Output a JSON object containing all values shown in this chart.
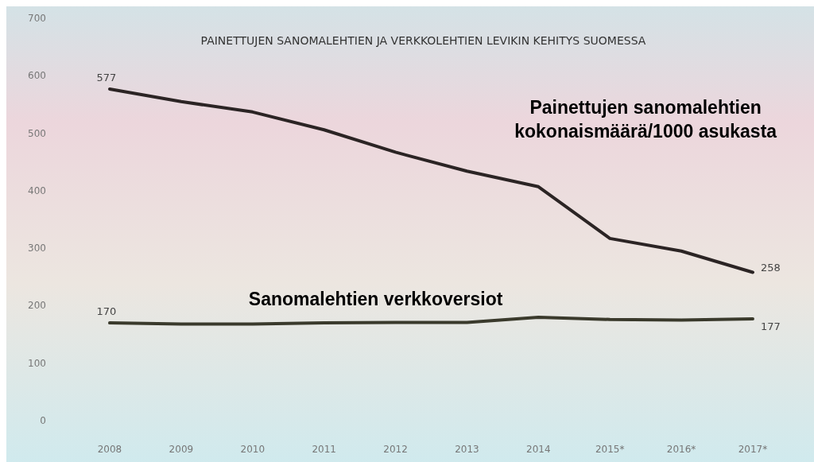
{
  "chart_data": {
    "type": "line",
    "title": "PAINETTUJEN SANOMALEHTIEN JA VERKKOLEHTIEN LEVIKIN KEHITYS SUOMESSA",
    "categories": [
      "2008",
      "2009",
      "2010",
      "2011",
      "2012",
      "2013",
      "2014",
      "2015*",
      "2016*",
      "2017*"
    ],
    "series": [
      {
        "name": "Painettujen sanomalehtien kokonaismäärä/1000 asukasta",
        "color": "#2b2424",
        "values": [
          577,
          555,
          537,
          506,
          467,
          434,
          407,
          317,
          295,
          258
        ],
        "value_labels": [
          "577",
          null,
          null,
          null,
          null,
          null,
          null,
          null,
          null,
          "258"
        ]
      },
      {
        "name": "Sanomalehtien verkkoversiot",
        "color": "#3a3a2c",
        "values": [
          170,
          168,
          168,
          170,
          171,
          171,
          180,
          176,
          175,
          177
        ],
        "value_labels": [
          "170",
          null,
          null,
          null,
          null,
          null,
          null,
          null,
          null,
          "177"
        ]
      }
    ],
    "ylim": [
      0,
      700
    ],
    "yticks": [
      0,
      100,
      200,
      300,
      400,
      500,
      600,
      700
    ],
    "grid": false,
    "legend": false,
    "marker": "none",
    "line_style": "solid"
  }
}
